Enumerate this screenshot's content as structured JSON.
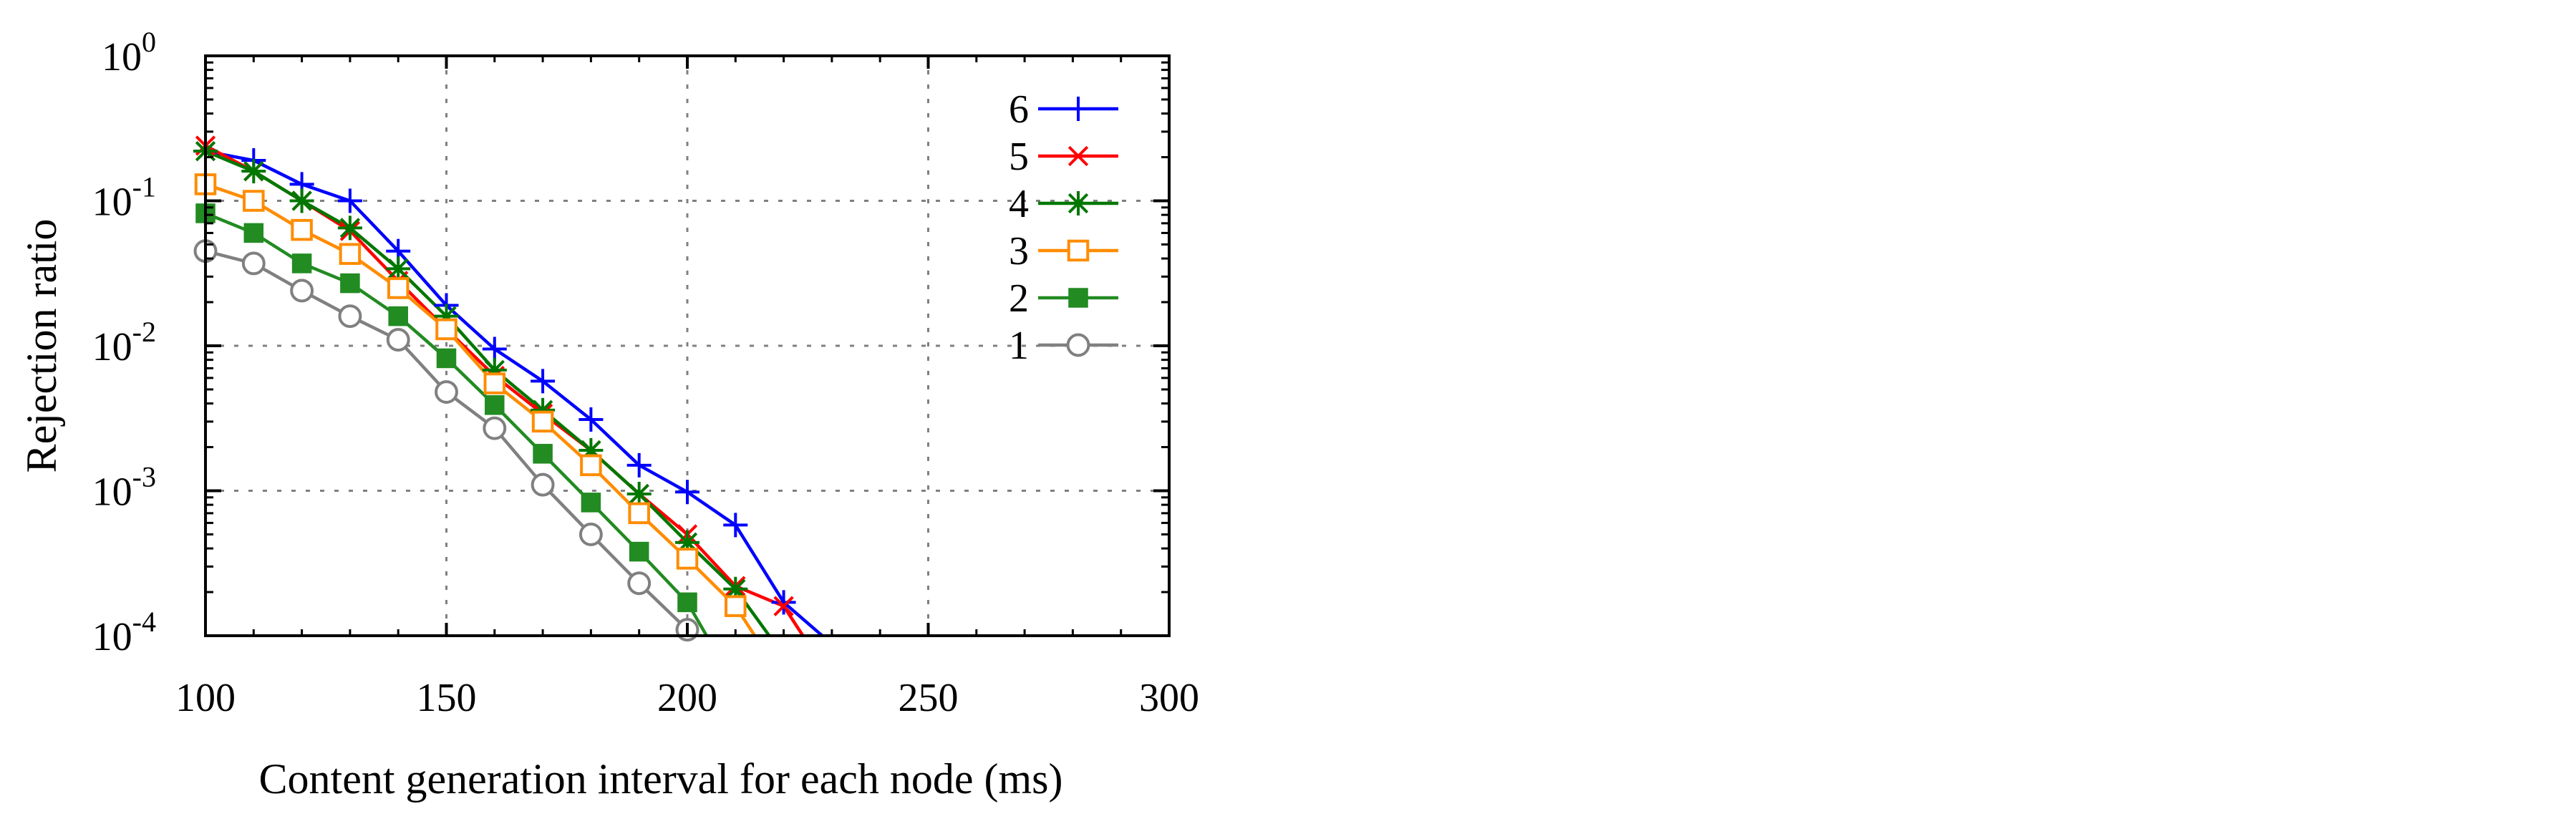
{
  "chart_data": {
    "type": "line",
    "title": "",
    "xlabel": "Content generation interval for each node (ms)",
    "ylabel": "Rejection ratio",
    "xlim": [
      100,
      300
    ],
    "ylim": [
      0.0001,
      1
    ],
    "yscale": "log",
    "grid": true,
    "legend_position": "top-right",
    "x_ticks": [
      100,
      150,
      200,
      250,
      300
    ],
    "y_ticks": [
      {
        "value": 1,
        "base": "10",
        "exp": "0"
      },
      {
        "value": 0.1,
        "base": "10",
        "exp": "-1"
      },
      {
        "value": 0.01,
        "base": "10",
        "exp": "-2"
      },
      {
        "value": 0.001,
        "base": "10",
        "exp": "-3"
      },
      {
        "value": 0.0001,
        "base": "10",
        "exp": "-4"
      }
    ],
    "series": [
      {
        "name": "6",
        "color": "#0000ff",
        "marker": "plus",
        "x": [
          100,
          110,
          120,
          130,
          140,
          150,
          160,
          170,
          180,
          190,
          200,
          210,
          220,
          228
        ],
        "y": [
          0.22,
          0.19,
          0.13,
          0.1,
          0.045,
          0.019,
          0.0095,
          0.0057,
          0.0031,
          0.0015,
          0.00098,
          0.00058,
          0.00017,
          0.0001
        ]
      },
      {
        "name": "5",
        "color": "#ff0000",
        "marker": "cross",
        "x": [
          100,
          110,
          120,
          130,
          140,
          150,
          160,
          170,
          180,
          190,
          200,
          210,
          220,
          224
        ],
        "y": [
          0.24,
          0.16,
          0.1,
          0.062,
          0.028,
          0.013,
          0.0062,
          0.0034,
          0.0019,
          0.00095,
          0.0005,
          0.00022,
          0.00016,
          0.0001
        ]
      },
      {
        "name": "4",
        "color": "#007700",
        "marker": "star",
        "x": [
          100,
          110,
          120,
          130,
          140,
          150,
          160,
          170,
          180,
          190,
          200,
          210,
          217
        ],
        "y": [
          0.22,
          0.16,
          0.1,
          0.065,
          0.034,
          0.016,
          0.0068,
          0.0036,
          0.0019,
          0.00095,
          0.00044,
          0.00021,
          0.0001
        ]
      },
      {
        "name": "3",
        "color": "#ff8c00",
        "marker": "square-open",
        "x": [
          100,
          110,
          120,
          130,
          140,
          150,
          160,
          170,
          180,
          190,
          200,
          210,
          214
        ],
        "y": [
          0.13,
          0.1,
          0.063,
          0.043,
          0.025,
          0.013,
          0.0055,
          0.003,
          0.0015,
          0.0007,
          0.00034,
          0.00016,
          0.0001
        ]
      },
      {
        "name": "2",
        "color": "#228b22",
        "marker": "square-filled",
        "x": [
          100,
          110,
          120,
          130,
          140,
          150,
          160,
          170,
          180,
          190,
          200,
          204
        ],
        "y": [
          0.082,
          0.06,
          0.037,
          0.027,
          0.016,
          0.0082,
          0.0039,
          0.0018,
          0.00083,
          0.00038,
          0.00017,
          0.0001
        ]
      },
      {
        "name": "1",
        "color": "#808080",
        "marker": "circle-open",
        "x": [
          100,
          110,
          120,
          130,
          140,
          150,
          160,
          170,
          180,
          190,
          200
        ],
        "y": [
          0.045,
          0.037,
          0.024,
          0.016,
          0.011,
          0.0048,
          0.0027,
          0.0011,
          0.0005,
          0.00023,
          0.00011
        ]
      }
    ]
  }
}
